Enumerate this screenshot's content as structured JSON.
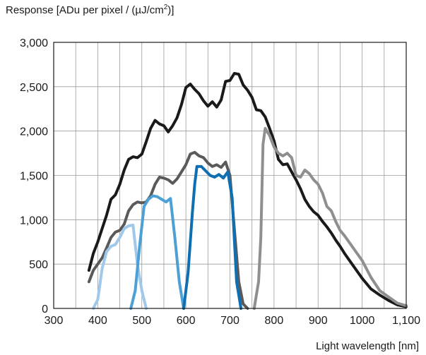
{
  "chart_data": {
    "type": "line",
    "ylabel_main": "Response [ADu per pixel / (µJ/cm",
    "ylabel_sup": "2",
    "ylabel_end": ")]",
    "xlabel": "Light wavelength [nm]",
    "xlim": [
      300,
      1100
    ],
    "ylim": [
      0,
      3000
    ],
    "x_ticks": [
      300,
      400,
      500,
      600,
      700,
      800,
      900,
      1000,
      1100
    ],
    "x_tick_labels": [
      "300",
      "400",
      "500",
      "600",
      "700",
      "800",
      "900",
      "1000",
      "1,100"
    ],
    "y_ticks": [
      0,
      500,
      1000,
      1500,
      2000,
      2500,
      3000
    ],
    "y_tick_labels": [
      "0",
      "500",
      "1,000",
      "1,500",
      "2,000",
      "2,500",
      "3,000"
    ],
    "grid": true,
    "series": [
      {
        "color": "#1a1a1a",
        "x": [
          380,
          390,
          400,
          410,
          420,
          430,
          440,
          450,
          460,
          470,
          480,
          490,
          500,
          510,
          520,
          530,
          540,
          550,
          560,
          570,
          580,
          590,
          600,
          610,
          620,
          630,
          640,
          650,
          660,
          670,
          680,
          690,
          700,
          710,
          720,
          730,
          740,
          750,
          760,
          770,
          780,
          790,
          800,
          810,
          820,
          830,
          840,
          850,
          860,
          870,
          880,
          890,
          900,
          910,
          920,
          930,
          940,
          950,
          960,
          980,
          1000,
          1020,
          1040,
          1060,
          1080,
          1100
        ],
        "y": [
          430,
          620,
          750,
          900,
          1050,
          1230,
          1280,
          1400,
          1560,
          1680,
          1710,
          1700,
          1740,
          1880,
          2030,
          2120,
          2080,
          2060,
          1990,
          2060,
          2150,
          2300,
          2490,
          2530,
          2470,
          2420,
          2340,
          2280,
          2330,
          2270,
          2350,
          2560,
          2570,
          2650,
          2640,
          2520,
          2460,
          2380,
          2240,
          2230,
          2160,
          2030,
          1890,
          1680,
          1620,
          1630,
          1540,
          1450,
          1350,
          1230,
          1150,
          1090,
          1050,
          980,
          920,
          850,
          770,
          700,
          620,
          480,
          340,
          220,
          150,
          90,
          40,
          20
        ]
      },
      {
        "color": "#5a5a5a",
        "x": [
          380,
          390,
          400,
          410,
          420,
          430,
          440,
          450,
          460,
          470,
          480,
          490,
          500,
          510,
          520,
          530,
          540,
          550,
          560,
          570,
          580,
          590,
          600,
          610,
          620,
          630,
          640,
          650,
          660,
          670,
          680,
          690,
          700,
          710,
          720,
          730,
          740
        ],
        "y": [
          300,
          430,
          500,
          570,
          680,
          800,
          860,
          880,
          950,
          1100,
          1170,
          1200,
          1190,
          1200,
          1270,
          1400,
          1480,
          1470,
          1450,
          1410,
          1460,
          1540,
          1620,
          1740,
          1760,
          1720,
          1700,
          1640,
          1600,
          1620,
          1590,
          1650,
          1500,
          900,
          300,
          50,
          0
        ]
      },
      {
        "color": "#a0c8ea",
        "x": [
          390,
          400,
          410,
          420,
          430,
          440,
          450,
          460,
          470,
          480,
          490,
          500,
          510
        ],
        "y": [
          0,
          100,
          450,
          640,
          700,
          720,
          800,
          900,
          930,
          940,
          500,
          200,
          0
        ]
      },
      {
        "color": "#4da0d6",
        "x": [
          475,
          485,
          495,
          505,
          515,
          525,
          535,
          545,
          555,
          565,
          575,
          585,
          595
        ],
        "y": [
          0,
          200,
          700,
          1150,
          1230,
          1270,
          1260,
          1230,
          1200,
          1240,
          800,
          300,
          0
        ]
      },
      {
        "color": "#0f6fb0",
        "x": [
          595,
          605,
          615,
          620,
          625,
          635,
          645,
          655,
          665,
          675,
          685,
          695,
          705,
          715,
          725
        ],
        "y": [
          0,
          400,
          1100,
          1400,
          1600,
          1600,
          1550,
          1500,
          1480,
          1510,
          1470,
          1540,
          1250,
          300,
          0
        ]
      },
      {
        "color": "#8f8f8f",
        "x": [
          755,
          760,
          765,
          770,
          775,
          780,
          790,
          800,
          810,
          820,
          830,
          840,
          850,
          860,
          870,
          880,
          890,
          900,
          910,
          920,
          930,
          940,
          950,
          960,
          980,
          1000,
          1020,
          1040,
          1060,
          1080,
          1100
        ],
        "y": [
          0,
          150,
          300,
          800,
          1850,
          2030,
          1950,
          1820,
          1750,
          1720,
          1750,
          1700,
          1500,
          1480,
          1560,
          1520,
          1450,
          1400,
          1300,
          1150,
          1100,
          980,
          880,
          820,
          680,
          540,
          350,
          200,
          130,
          60,
          30
        ]
      }
    ]
  }
}
